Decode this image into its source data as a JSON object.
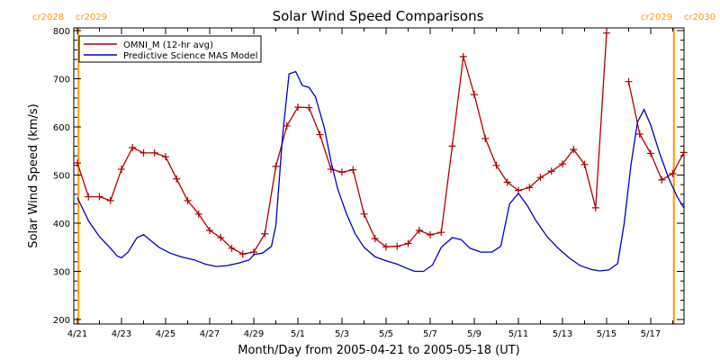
{
  "chart_data": {
    "type": "line",
    "title": "Solar Wind Speed Comparisons",
    "xlabel": "Month/Day from 2005-04-21 to 2005-05-18 (UT)",
    "ylabel": "Solar Wind Speed (km/s)",
    "ylim": [
      200,
      800
    ],
    "xlim_days": [
      0,
      27.2
    ],
    "grid": false,
    "legend_position": "top-left",
    "y_ticks": [
      200,
      300,
      400,
      500,
      600,
      700,
      800
    ],
    "x_ticks": [
      {
        "day": 0,
        "label": "4/21"
      },
      {
        "day": 2,
        "label": "4/23"
      },
      {
        "day": 4,
        "label": "4/25"
      },
      {
        "day": 6,
        "label": "4/27"
      },
      {
        "day": 8,
        "label": "4/29"
      },
      {
        "day": 10,
        "label": "5/1"
      },
      {
        "day": 12,
        "label": "5/3"
      },
      {
        "day": 14,
        "label": "5/5"
      },
      {
        "day": 16,
        "label": "5/7"
      },
      {
        "day": 18,
        "label": "5/9"
      },
      {
        "day": 20,
        "label": "5/11"
      },
      {
        "day": 22,
        "label": "5/13"
      },
      {
        "day": 24,
        "label": "5/15"
      },
      {
        "day": 26,
        "label": "5/17"
      }
    ],
    "carrington_markers": [
      {
        "day": 0.05,
        "labels": [
          "cr2028",
          "cr2029"
        ],
        "side": "left"
      },
      {
        "day": 27.05,
        "labels": [
          "cr2029",
          "cr2030"
        ],
        "side": "right"
      }
    ],
    "series": [
      {
        "name": "OMNI_M (12-hr avg)",
        "color": "#b00000",
        "markers": "plus",
        "segments": [
          [
            [
              0.0,
              525
            ],
            [
              0.5,
              455
            ],
            [
              1.0,
              455
            ],
            [
              1.5,
              447
            ],
            [
              2.0,
              512
            ],
            [
              2.5,
              557
            ],
            [
              3.0,
              546
            ],
            [
              3.5,
              546
            ],
            [
              4.0,
              538
            ],
            [
              4.5,
              492
            ],
            [
              5.0,
              447
            ],
            [
              5.5,
              419
            ],
            [
              6.0,
              385
            ],
            [
              6.5,
              370
            ],
            [
              7.0,
              348
            ],
            [
              7.5,
              336
            ],
            [
              8.0,
              340
            ],
            [
              8.5,
              378
            ],
            [
              9.0,
              518
            ],
            [
              9.5,
              602
            ],
            [
              10.0,
              641
            ],
            [
              10.5,
              640
            ],
            [
              11.0,
              584
            ],
            [
              11.5,
              512
            ],
            [
              12.0,
              506
            ],
            [
              12.5,
              511
            ],
            [
              13.0,
              419
            ],
            [
              13.5,
              368
            ],
            [
              14.0,
              351
            ],
            [
              14.5,
              352
            ],
            [
              15.0,
              358
            ],
            [
              15.5,
              385
            ],
            [
              16.0,
              376
            ],
            [
              16.5,
              381
            ],
            [
              17.0,
              560
            ],
            [
              17.5,
              746
            ],
            [
              18.0,
              667
            ],
            [
              18.5,
              576
            ],
            [
              19.0,
              520
            ],
            [
              19.5,
              485
            ],
            [
              20.0,
              468
            ],
            [
              20.5,
              474
            ],
            [
              21.0,
              495
            ],
            [
              21.5,
              508
            ],
            [
              22.0,
              523
            ],
            [
              22.5,
              553
            ],
            [
              23.0,
              522
            ],
            [
              23.5,
              432
            ],
            [
              24.0,
              795
            ]
          ],
          [
            [
              25.0,
              694
            ],
            [
              25.5,
              585
            ],
            [
              26.0,
              545
            ],
            [
              26.5,
              490
            ],
            [
              27.0,
              503
            ],
            [
              27.5,
              547
            ]
          ]
        ]
      },
      {
        "name": "Predictive Science MAS Model",
        "color": "#0000cc",
        "markers": "none",
        "segments": [
          [
            [
              0.0,
              453
            ],
            [
              0.5,
              405
            ],
            [
              1.0,
              372
            ],
            [
              1.5,
              348
            ],
            [
              1.8,
              332
            ],
            [
              2.0,
              328
            ],
            [
              2.3,
              340
            ],
            [
              2.7,
              370
            ],
            [
              3.0,
              376
            ],
            [
              3.3,
              365
            ],
            [
              3.7,
              350
            ],
            [
              4.2,
              338
            ],
            [
              4.7,
              330
            ],
            [
              5.3,
              324
            ],
            [
              5.8,
              315
            ],
            [
              6.3,
              310
            ],
            [
              6.8,
              312
            ],
            [
              7.3,
              317
            ],
            [
              7.8,
              324
            ],
            [
              8.0,
              335
            ],
            [
              8.4,
              338
            ],
            [
              8.8,
              352
            ],
            [
              9.0,
              395
            ],
            [
              9.3,
              580
            ],
            [
              9.6,
              710
            ],
            [
              9.9,
              715
            ],
            [
              10.2,
              686
            ],
            [
              10.5,
              682
            ],
            [
              10.8,
              662
            ],
            [
              11.2,
              598
            ],
            [
              11.5,
              528
            ],
            [
              11.8,
              472
            ],
            [
              12.2,
              420
            ],
            [
              12.6,
              378
            ],
            [
              13.0,
              350
            ],
            [
              13.5,
              330
            ],
            [
              14.0,
              322
            ],
            [
              14.5,
              315
            ],
            [
              15.0,
              305
            ],
            [
              15.3,
              300
            ],
            [
              15.7,
              300
            ],
            [
              16.1,
              313
            ],
            [
              16.5,
              350
            ],
            [
              17.0,
              370
            ],
            [
              17.4,
              366
            ],
            [
              17.8,
              348
            ],
            [
              18.3,
              340
            ],
            [
              18.8,
              340
            ],
            [
              19.2,
              352
            ],
            [
              19.6,
              440
            ],
            [
              20.0,
              462
            ],
            [
              20.4,
              437
            ],
            [
              20.8,
              405
            ],
            [
              21.3,
              372
            ],
            [
              21.8,
              348
            ],
            [
              22.3,
              328
            ],
            [
              22.8,
              312
            ],
            [
              23.3,
              304
            ],
            [
              23.7,
              301
            ],
            [
              24.1,
              303
            ],
            [
              24.5,
              316
            ],
            [
              24.8,
              400
            ],
            [
              25.1,
              520
            ],
            [
              25.4,
              610
            ],
            [
              25.7,
              636
            ],
            [
              26.0,
              604
            ],
            [
              26.4,
              546
            ],
            [
              26.8,
              495
            ],
            [
              27.2,
              455
            ],
            [
              27.5,
              432
            ]
          ]
        ]
      }
    ]
  }
}
